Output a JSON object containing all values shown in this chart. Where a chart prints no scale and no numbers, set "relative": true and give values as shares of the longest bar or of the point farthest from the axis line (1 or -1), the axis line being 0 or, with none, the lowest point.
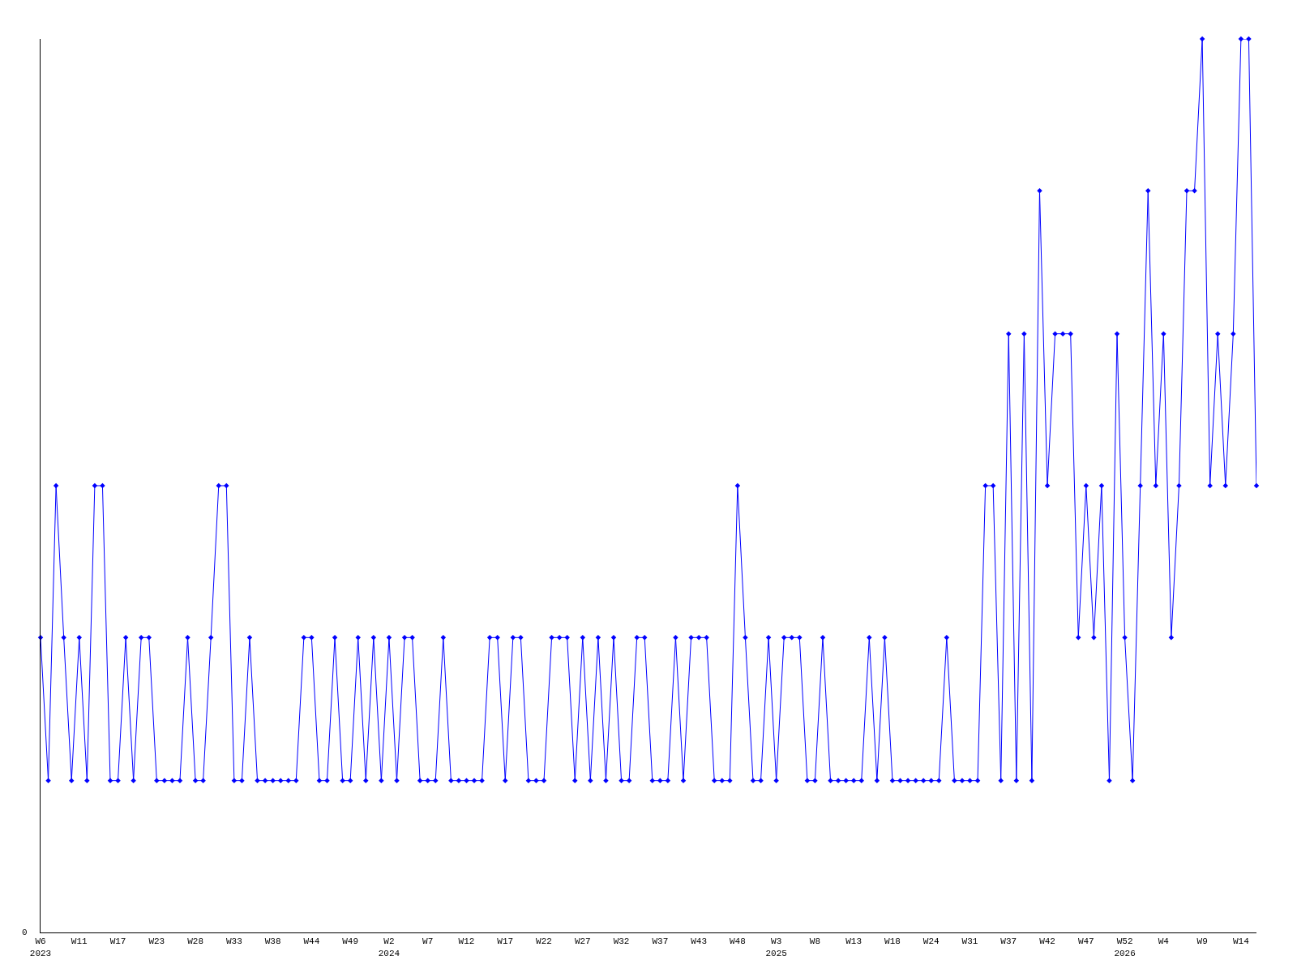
{
  "chart_data": {
    "type": "line",
    "relative": true,
    "marker": "diamond",
    "line_style": "solid",
    "annotations": [
      "0"
    ],
    "categories": [
      "W6\n2023",
      null,
      null,
      null,
      null,
      "W11",
      null,
      null,
      null,
      null,
      "W17",
      null,
      null,
      null,
      null,
      "W23",
      null,
      null,
      null,
      null,
      "W28",
      null,
      null,
      null,
      null,
      "W33",
      null,
      null,
      null,
      null,
      "W38",
      null,
      null,
      null,
      null,
      "W44",
      null,
      null,
      null,
      null,
      "W49",
      null,
      null,
      null,
      null,
      "W2\n2024",
      null,
      null,
      null,
      null,
      "W7",
      null,
      null,
      null,
      null,
      "W12",
      null,
      null,
      null,
      null,
      "W17",
      null,
      null,
      null,
      null,
      "W22",
      null,
      null,
      null,
      null,
      "W27",
      null,
      null,
      null,
      null,
      "W32",
      null,
      null,
      null,
      null,
      "W37",
      null,
      null,
      null,
      null,
      "W43",
      null,
      null,
      null,
      null,
      "W48",
      null,
      null,
      null,
      null,
      "W3\n2025",
      null,
      null,
      null,
      null,
      "W8",
      null,
      null,
      null,
      null,
      "W13",
      null,
      null,
      null,
      null,
      "W18",
      null,
      null,
      null,
      null,
      "W24",
      null,
      null,
      null,
      null,
      "W31",
      null,
      null,
      null,
      null,
      "W37",
      null,
      null,
      null,
      null,
      "W42",
      null,
      null,
      null,
      null,
      "W47",
      null,
      null,
      null,
      null,
      "W52\n2026",
      null,
      null,
      null,
      null,
      "W4",
      null,
      null,
      null,
      null,
      "W9",
      null,
      null,
      null,
      null,
      "W14",
      null,
      null
    ],
    "series": [
      {
        "color": "#0000ff",
        "values": [
          0.33,
          0.17,
          0.5,
          0.33,
          0.17,
          0.33,
          0.17,
          0.5,
          0.5,
          0.17,
          0.17,
          0.33,
          0.17,
          0.33,
          0.33,
          0.17,
          0.17,
          0.17,
          0.17,
          0.33,
          0.17,
          0.17,
          0.33,
          0.5,
          0.5,
          0.17,
          0.17,
          0.33,
          0.17,
          0.17,
          0.17,
          0.17,
          0.17,
          0.17,
          0.33,
          0.33,
          0.17,
          0.17,
          0.33,
          0.17,
          0.17,
          0.33,
          0.17,
          0.33,
          0.17,
          0.33,
          0.17,
          0.33,
          0.33,
          0.17,
          0.17,
          0.17,
          0.33,
          0.17,
          0.17,
          0.17,
          0.17,
          0.17,
          0.33,
          0.33,
          0.17,
          0.33,
          0.33,
          0.17,
          0.17,
          0.17,
          0.33,
          0.33,
          0.33,
          0.17,
          0.33,
          0.17,
          0.33,
          0.17,
          0.33,
          0.17,
          0.17,
          0.33,
          0.33,
          0.17,
          0.17,
          0.17,
          0.33,
          0.17,
          0.33,
          0.33,
          0.33,
          0.17,
          0.17,
          0.17,
          0.5,
          0.33,
          0.17,
          0.17,
          0.33,
          0.17,
          0.33,
          0.33,
          0.33,
          0.17,
          0.17,
          0.33,
          0.17,
          0.17,
          0.17,
          0.17,
          0.17,
          0.33,
          0.17,
          0.33,
          0.17,
          0.17,
          0.17,
          0.17,
          0.17,
          0.17,
          0.17,
          0.33,
          0.17,
          0.17,
          0.17,
          0.17,
          0.5,
          0.5,
          0.17,
          0.67,
          0.17,
          0.67,
          0.17,
          0.83,
          0.5,
          0.67,
          0.67,
          0.67,
          0.33,
          0.5,
          0.33,
          0.5,
          0.17,
          0.67,
          0.33,
          0.17,
          0.5,
          0.83,
          0.5,
          0.67,
          0.33,
          0.5,
          0.83,
          0.83,
          1,
          0.5,
          0.67,
          0.5,
          0.67,
          1,
          1,
          0.5
        ]
      }
    ]
  }
}
